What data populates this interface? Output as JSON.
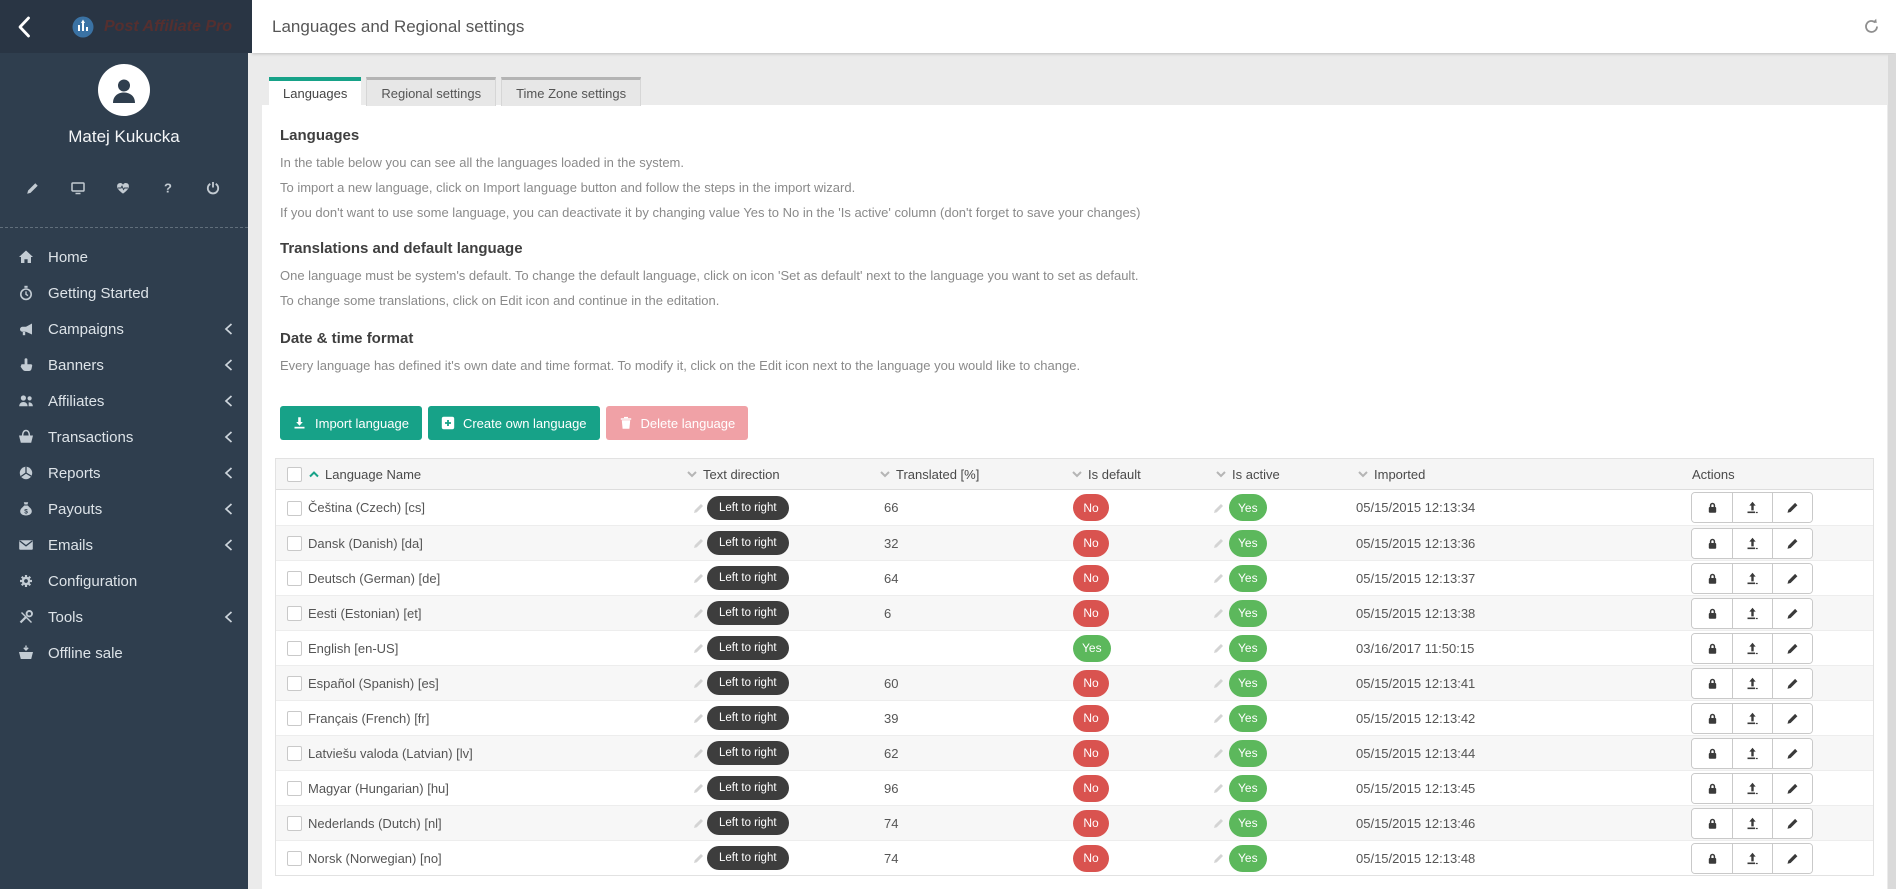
{
  "brand": {
    "logo_text": "Post Affiliate Pro"
  },
  "profile": {
    "name": "Matej Kukucka",
    "icons": [
      "pencil",
      "monitor",
      "heartbeat",
      "question",
      "power"
    ]
  },
  "sidebar": {
    "items": [
      {
        "label": "Home",
        "icon": "home",
        "expandable": false
      },
      {
        "label": "Getting Started",
        "icon": "stopwatch",
        "expandable": false
      },
      {
        "label": "Campaigns",
        "icon": "megaphone",
        "expandable": true
      },
      {
        "label": "Banners",
        "icon": "hand-pointer",
        "expandable": true
      },
      {
        "label": "Affiliates",
        "icon": "users",
        "expandable": true
      },
      {
        "label": "Transactions",
        "icon": "basket",
        "expandable": true
      },
      {
        "label": "Reports",
        "icon": "pie-chart",
        "expandable": true
      },
      {
        "label": "Payouts",
        "icon": "money-bag",
        "expandable": true
      },
      {
        "label": "Emails",
        "icon": "envelope",
        "expandable": true
      },
      {
        "label": "Configuration",
        "icon": "gear",
        "expandable": false
      },
      {
        "label": "Tools",
        "icon": "tools",
        "expandable": true
      },
      {
        "label": "Offline sale",
        "icon": "cart-arrow",
        "expandable": false
      }
    ]
  },
  "header": {
    "title": "Languages and Regional settings"
  },
  "tabs": [
    {
      "label": "Languages",
      "active": true
    },
    {
      "label": "Regional settings",
      "active": false
    },
    {
      "label": "Time Zone settings",
      "active": false
    }
  ],
  "sections": [
    {
      "heading": "Languages",
      "paragraphs": [
        "In the table below you can see all the languages loaded in the system.",
        "To import a new language, click on Import language button and follow the steps in the import wizard.",
        "If you don't want to use some language, you can deactivate it by changing value Yes to No in the 'Is active' column (don't forget to save your changes)"
      ]
    },
    {
      "heading": "Translations and default language",
      "paragraphs": [
        "One language must be system's default. To change the default language, click on icon 'Set as default' next to the language you want to set as default.",
        "To change some translations, click on Edit icon and continue in the editation."
      ]
    },
    {
      "heading": "Date & time format",
      "paragraphs": [
        "Every language has defined it's own date and time format. To modify it, click on the Edit icon next to the language you would like to change."
      ]
    }
  ],
  "toolbar": {
    "buttons": [
      {
        "label": "Import language",
        "icon": "download",
        "style": "teal"
      },
      {
        "label": "Create own language",
        "icon": "plus-square",
        "style": "teal"
      },
      {
        "label": "Delete language",
        "icon": "trash",
        "style": "pink"
      }
    ]
  },
  "table": {
    "columns": [
      {
        "label": "Language Name",
        "sort": "asc"
      },
      {
        "label": "Text direction",
        "sort": "desc"
      },
      {
        "label": "Translated [%]",
        "sort": "desc"
      },
      {
        "label": "Is default",
        "sort": "desc"
      },
      {
        "label": "Is active",
        "sort": "desc"
      },
      {
        "label": "Imported",
        "sort": "desc"
      },
      {
        "label": "Actions",
        "sort": null
      }
    ],
    "rows": [
      {
        "name": "Čeština (Czech) [cs]",
        "direction": "Left to right",
        "translated": "66",
        "is_default": "No",
        "is_active": "Yes",
        "imported": "05/15/2015 12:13:34"
      },
      {
        "name": "Dansk (Danish) [da]",
        "direction": "Left to right",
        "translated": "32",
        "is_default": "No",
        "is_active": "Yes",
        "imported": "05/15/2015 12:13:36"
      },
      {
        "name": "Deutsch (German) [de]",
        "direction": "Left to right",
        "translated": "64",
        "is_default": "No",
        "is_active": "Yes",
        "imported": "05/15/2015 12:13:37"
      },
      {
        "name": "Eesti (Estonian) [et]",
        "direction": "Left to right",
        "translated": "6",
        "is_default": "No",
        "is_active": "Yes",
        "imported": "05/15/2015 12:13:38"
      },
      {
        "name": "English [en-US]",
        "direction": "Left to right",
        "translated": "",
        "is_default": "Yes",
        "is_active": "Yes",
        "imported": "03/16/2017 11:50:15"
      },
      {
        "name": "Español (Spanish) [es]",
        "direction": "Left to right",
        "translated": "60",
        "is_default": "No",
        "is_active": "Yes",
        "imported": "05/15/2015 12:13:41"
      },
      {
        "name": "Français (French) [fr]",
        "direction": "Left to right",
        "translated": "39",
        "is_default": "No",
        "is_active": "Yes",
        "imported": "05/15/2015 12:13:42"
      },
      {
        "name": "Latviešu valoda (Latvian) [lv]",
        "direction": "Left to right",
        "translated": "62",
        "is_default": "No",
        "is_active": "Yes",
        "imported": "05/15/2015 12:13:44"
      },
      {
        "name": "Magyar (Hungarian) [hu]",
        "direction": "Left to right",
        "translated": "96",
        "is_default": "No",
        "is_active": "Yes",
        "imported": "05/15/2015 12:13:45"
      },
      {
        "name": "Nederlands (Dutch) [nl]",
        "direction": "Left to right",
        "translated": "74",
        "is_default": "No",
        "is_active": "Yes",
        "imported": "05/15/2015 12:13:46"
      },
      {
        "name": "Norsk (Norwegian) [no]",
        "direction": "Left to right",
        "translated": "74",
        "is_default": "No",
        "is_active": "Yes",
        "imported": "05/15/2015 12:13:48"
      }
    ],
    "row_actions": [
      "lock",
      "export",
      "edit"
    ]
  },
  "colors": {
    "accent_teal": "#17a288",
    "badge_red": "#d9534f",
    "badge_green": "#5cb85c",
    "delete_pink": "#f0a1a6",
    "pill_dark": "#3d3d3d",
    "sidebar_bg": "#2f3e4e",
    "sidebar_top_bg": "#293544"
  }
}
